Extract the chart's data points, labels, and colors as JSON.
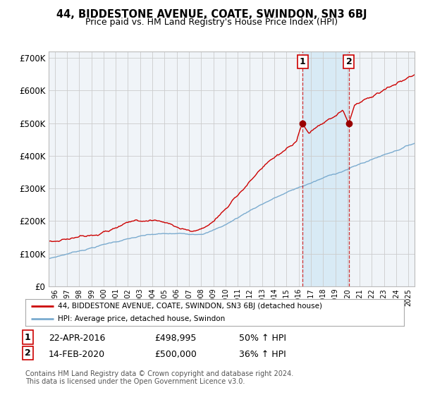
{
  "title": "44, BIDDESTONE AVENUE, COATE, SWINDON, SN3 6BJ",
  "subtitle": "Price paid vs. HM Land Registry's House Price Index (HPI)",
  "legend_line1": "44, BIDDESTONE AVENUE, COATE, SWINDON, SN3 6BJ (detached house)",
  "legend_line2": "HPI: Average price, detached house, Swindon",
  "annotation1_date": "22-APR-2016",
  "annotation1_price": "£498,995",
  "annotation1_hpi": "50% ↑ HPI",
  "annotation2_date": "14-FEB-2020",
  "annotation2_price": "£500,000",
  "annotation2_hpi": "36% ↑ HPI",
  "footer": "Contains HM Land Registry data © Crown copyright and database right 2024.\nThis data is licensed under the Open Government Licence v3.0.",
  "hpi_color": "#7aabcf",
  "price_color": "#cc0000",
  "dot_color": "#990000",
  "vline_color": "#cc0000",
  "shade_color": "#d8eaf5",
  "grid_color": "#cccccc",
  "plot_bg": "#f0f4f8",
  "ylim": [
    0,
    720000
  ],
  "xlim_start": 1995.5,
  "xlim_end": 2025.5,
  "sale1_year": 2016.31,
  "sale2_year": 2020.12,
  "sale1_price": 498995,
  "sale2_price": 500000
}
